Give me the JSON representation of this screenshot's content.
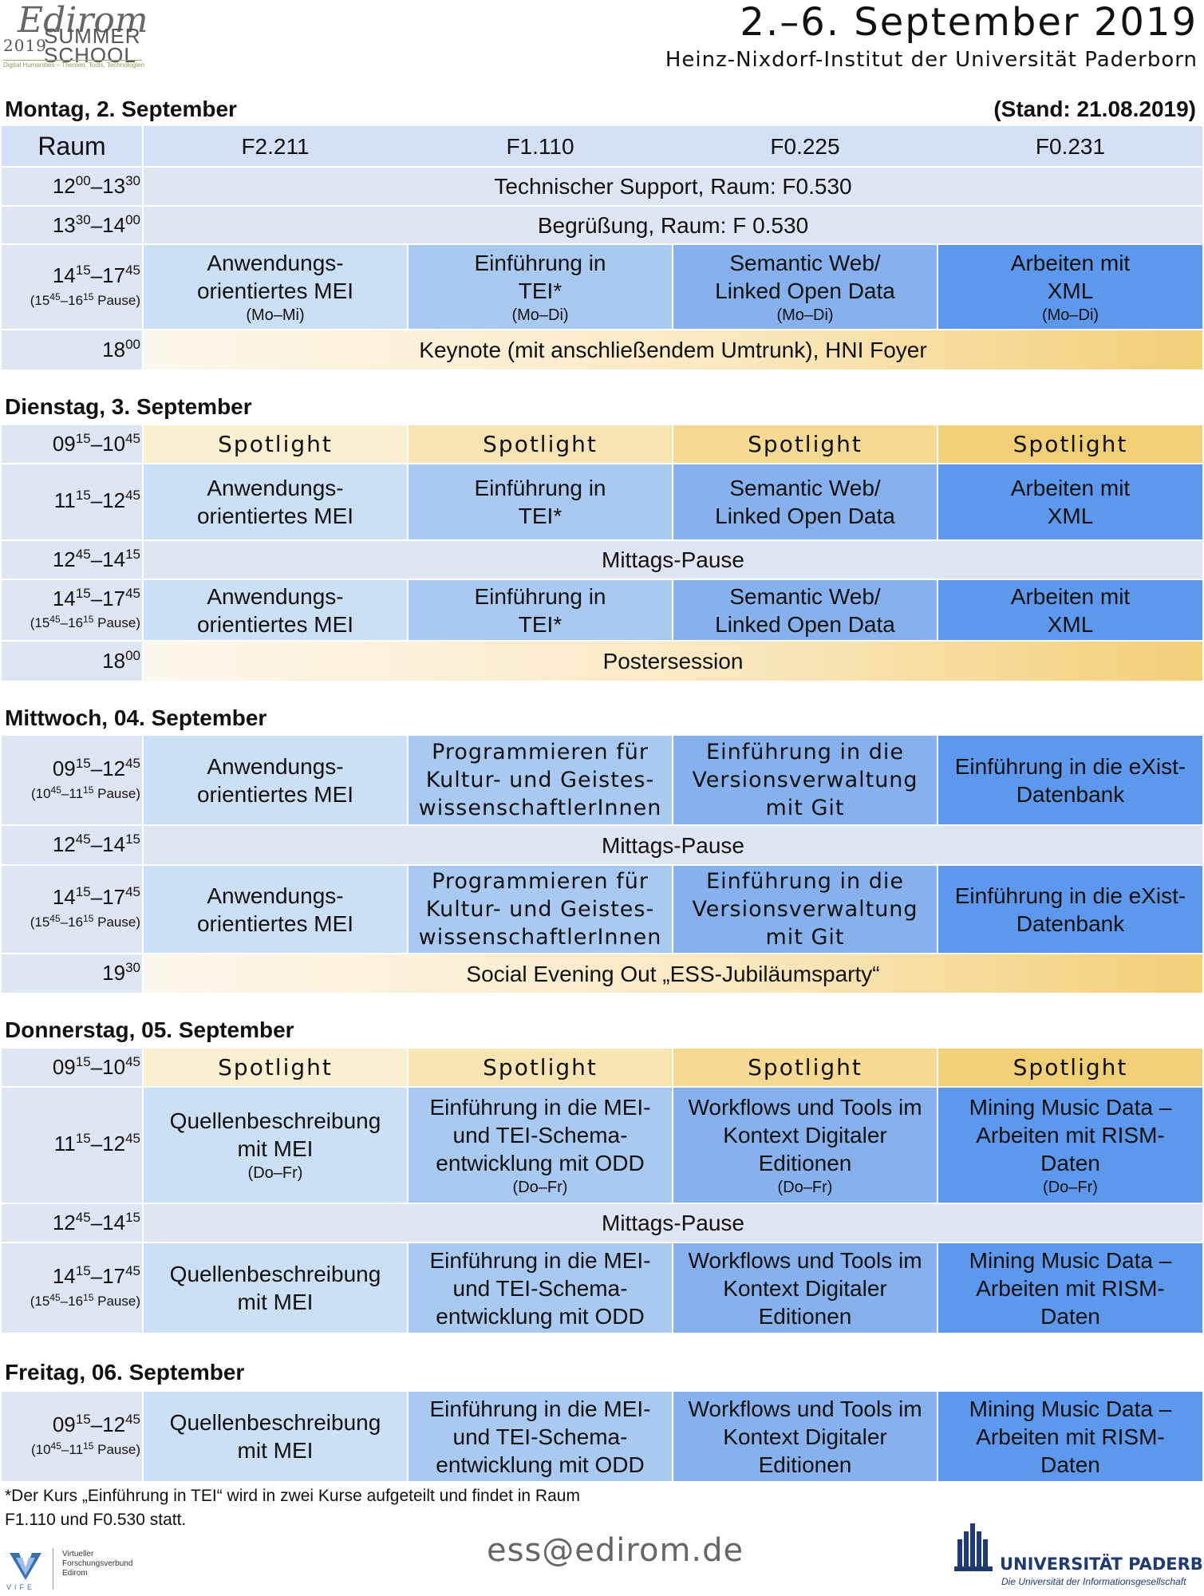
{
  "header": {
    "logo_script": "Edirom",
    "logo_year": "2019",
    "logo_summer": "SUMMER",
    "logo_school": "SCHOOL",
    "logo_tagline": "Digital Humanities – Themen, Tools, Technologien",
    "title": "2.–6. September 2019",
    "subtitle": "Heinz-Nixdorf-Institut der Universität Paderborn",
    "stand": "(Stand: 21.08.2019)"
  },
  "rooms": {
    "label": "Raum",
    "r1": "F2.211",
    "r2": "F1.110",
    "r3": "F0.225",
    "r4": "F0.231"
  },
  "common": {
    "mei": "Anwendungs-",
    "mei2": "orientiertes MEI",
    "tei": "Einführung in",
    "tei2": "TEI*",
    "sw": "Semantic Web/",
    "sw2": "Linked Open Data",
    "xml": "Arbeiten mit",
    "xml2": "XML",
    "spotlight": "Spotlight",
    "mittag": "Mittags-Pause",
    "prog1": "Programmieren für",
    "prog2": "Kultur- und Geistes-",
    "prog3": "wissenschaftlerInnen",
    "git1": "Einführung in die",
    "git2": "Versionsverwaltung",
    "git3": "mit Git",
    "exist1": "Einführung in die eXist-",
    "exist2": "Datenbank",
    "qb1": "Quellenbeschreibung",
    "qb2": "mit MEI",
    "odd1": "Einführung in die MEI-",
    "odd2": "und TEI-Schema-",
    "odd3": "entwicklung mit ODD",
    "wf1": "Workflows und Tools im",
    "wf2": "Kontext Digitaler",
    "wf3": "Editionen",
    "mm1": "Mining Music Data –",
    "mm2": "Arbeiten mit RISM-",
    "mm3": "Daten",
    "mo_mi": "(Mo–Mi)",
    "mo_di": "(Mo–Di)",
    "do_fr": "(Do–Fr)",
    "pause": "Pause)"
  },
  "days": {
    "mon": "Montag, 2. September",
    "tue": "Dienstag, 3. September",
    "wed": "Mittwoch, 04. September",
    "thu": "Donnerstag, 05. September",
    "fri": "Freitag, 06. September"
  },
  "events": {
    "support": "Technischer Support, Raum: F0.530",
    "welcome": "Begrüßung, Raum: F 0.530",
    "keynote": "Keynote (mit anschließendem Umtrunk), HNI Foyer",
    "poster": "Postersession",
    "social": "Social Evening Out „ESS-Jubiläumsparty“"
  },
  "times": {
    "h12": "12",
    "m00": "00",
    "h13": "13",
    "m30": "30",
    "h14": "14",
    "m15": "15",
    "h17": "17",
    "m45": "45",
    "h15": "15",
    "h16": "16",
    "h18": "18",
    "h09": "09",
    "h10": "10",
    "h11": "11",
    "h12b": "12",
    "h19": "19",
    "dash": "–",
    "open": "("
  },
  "footer": {
    "note_line1": "*Der Kurs „Einführung in TEI“ wird in zwei Kurse aufgeteilt und findet in Raum",
    "note_line2": "F1.110 und F0.530 statt.",
    "email": "ess@edirom.de",
    "vife_l1": "Virtueller",
    "vife_l2": "Forschungsverbund",
    "vife_l3": "Edirom",
    "vife_mark": "VIFE",
    "up_name": "UNIVERSITÄT PADERBORN",
    "up_sub": "Die Universität der Informationsgesellschaft"
  },
  "colors": {
    "room_header": "#d4e0f5",
    "time_cell": "#dee5f3",
    "col1": "#cce0f5",
    "col2": "#a9c9f0",
    "col3": "#86b1ec",
    "col4": "#5e98ec",
    "spotlight_gold": "#f1cf76",
    "up_blue": "#1e3a6e"
  }
}
